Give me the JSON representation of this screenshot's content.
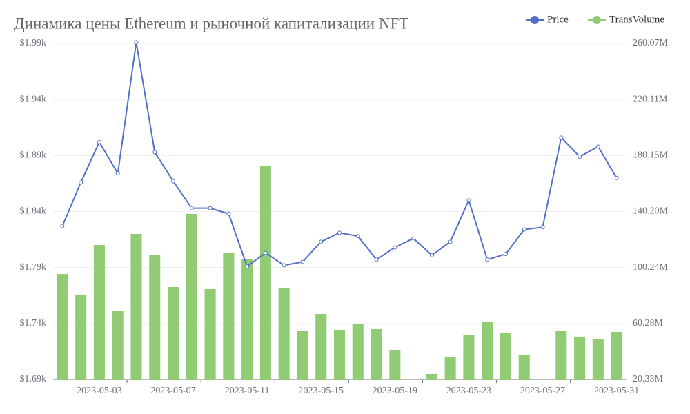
{
  "chart_data": {
    "type": "bar_line",
    "title": "Динамика цены Ethereum и рыночной капитализации NFT",
    "categories": [
      null,
      null,
      "2023-05-03",
      null,
      null,
      null,
      "2023-05-07",
      null,
      null,
      null,
      "2023-05-11",
      null,
      null,
      null,
      "2023-05-15",
      null,
      null,
      null,
      "2023-05-19",
      null,
      null,
      null,
      "2023-05-23",
      null,
      null,
      null,
      "2023-05-27",
      null,
      null,
      null,
      "2023-05-31"
    ],
    "series": [
      {
        "name": "Price",
        "type": "line",
        "color": "#5470c6",
        "axis": "y",
        "values": [
          1827,
          1866,
          1902,
          1874,
          1991,
          1893,
          1867,
          1843,
          1843,
          1838,
          1791,
          1803,
          1792,
          1795,
          1813,
          1821,
          1818,
          1797,
          1808,
          1816,
          1801,
          1813,
          1850,
          1797,
          1802,
          1824,
          1826,
          1906,
          1889,
          1898,
          1870
        ]
      },
      {
        "name": "TransVolume",
        "type": "bar",
        "color": "#91cc75",
        "axis": "y2",
        "values": [
          95.6,
          80.9,
          116.3,
          69.1,
          124.2,
          109.4,
          86.3,
          138.5,
          84.8,
          110.9,
          106.0,
          172.9,
          85.8,
          54.8,
          67.1,
          55.8,
          60.2,
          56.3,
          41.5,
          null,
          24.3,
          36.1,
          52.3,
          61.7,
          53.8,
          38.1,
          null,
          54.8,
          50.9,
          48.9,
          54.3
        ]
      }
    ],
    "ylim": [
      1690,
      1990
    ],
    "yticks": [
      {
        "value": 1690,
        "label": "$1.69k"
      },
      {
        "value": 1740,
        "label": "$1.74k"
      },
      {
        "value": 1790,
        "label": "$1.79k"
      },
      {
        "value": 1840,
        "label": "$1.84k"
      },
      {
        "value": 1890,
        "label": "$1.89k"
      },
      {
        "value": 1940,
        "label": "$1.94k"
      },
      {
        "value": 1990,
        "label": "$1.99k"
      }
    ],
    "y2lim": [
      20.33,
      260.07
    ],
    "y2ticks": [
      {
        "value": 20.33,
        "label": "20.33M"
      },
      {
        "value": 60.28,
        "label": "60.28M"
      },
      {
        "value": 100.24,
        "label": "100.24M"
      },
      {
        "value": 140.2,
        "label": "140.20M"
      },
      {
        "value": 180.15,
        "label": "180.15M"
      },
      {
        "value": 220.11,
        "label": "220.11M"
      },
      {
        "value": 260.07,
        "label": "260.07M"
      }
    ],
    "grid": true,
    "legend": "top-right"
  }
}
